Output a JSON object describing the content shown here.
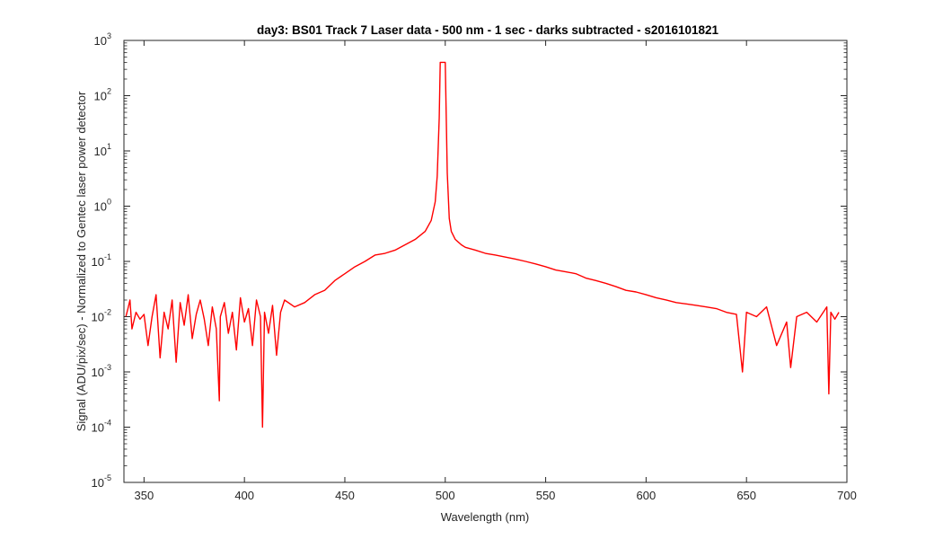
{
  "chart_data": {
    "type": "line",
    "title": "day3: BS01  Track 7 Laser data - 500 nm - 1 sec - darks subtracted - s2016101821",
    "xlabel": "Wavelength (nm)",
    "ylabel": "Signal (ADU/pix/sec) - Normalized to Gentec laser power detector",
    "xlim": [
      340,
      700
    ],
    "ylim": [
      1e-05,
      1000
    ],
    "yscale": "log",
    "grid": false,
    "legend": "none",
    "line_color": "#ff0000",
    "x_ticks": [
      {
        "value": 350,
        "label": "350"
      },
      {
        "value": 400,
        "label": "400"
      },
      {
        "value": 450,
        "label": "450"
      },
      {
        "value": 500,
        "label": "500"
      },
      {
        "value": 550,
        "label": "550"
      },
      {
        "value": 600,
        "label": "600"
      },
      {
        "value": 650,
        "label": "650"
      },
      {
        "value": 700,
        "label": "700"
      }
    ],
    "y_ticks": [
      {
        "value": 1e-05,
        "base": "10",
        "exp": "-5"
      },
      {
        "value": 0.0001,
        "base": "10",
        "exp": "-4"
      },
      {
        "value": 0.001,
        "base": "10",
        "exp": "-3"
      },
      {
        "value": 0.01,
        "base": "10",
        "exp": "-2"
      },
      {
        "value": 0.1,
        "base": "10",
        "exp": "-1"
      },
      {
        "value": 1,
        "base": "10",
        "exp": "0"
      },
      {
        "value": 10,
        "base": "10",
        "exp": "1"
      },
      {
        "value": 100,
        "base": "10",
        "exp": "2"
      },
      {
        "value": 1000,
        "base": "10",
        "exp": "3"
      }
    ],
    "series": [
      {
        "x": [
          341,
          342,
          343,
          344,
          346,
          348,
          350,
          352,
          354,
          356,
          358,
          360,
          362,
          364,
          366,
          368,
          370,
          372,
          374,
          376,
          378,
          380,
          382,
          384,
          386,
          387.5,
          388,
          390,
          392,
          394,
          396,
          398,
          400,
          402,
          404,
          406,
          408,
          409,
          410,
          412,
          414,
          416,
          418,
          420,
          425,
          430,
          435,
          440,
          445,
          450,
          455,
          460,
          465,
          470,
          475,
          480,
          485,
          490,
          493,
          495,
          496,
          497,
          497.5,
          498,
          500,
          500.5,
          501,
          502,
          503,
          505,
          508,
          510,
          515,
          520,
          525,
          530,
          535,
          540,
          545,
          550,
          555,
          560,
          565,
          570,
          575,
          580,
          585,
          590,
          595,
          600,
          605,
          610,
          615,
          620,
          625,
          630,
          635,
          640,
          645,
          648,
          650,
          655,
          660,
          665,
          670,
          672,
          675,
          680,
          685,
          690,
          691,
          692,
          694,
          696
        ],
        "y": [
          0.0101,
          0.014,
          0.02,
          0.006,
          0.012,
          0.009,
          0.011,
          0.003,
          0.01,
          0.025,
          0.0018,
          0.012,
          0.006,
          0.02,
          0.0015,
          0.018,
          0.007,
          0.025,
          0.004,
          0.011,
          0.02,
          0.009,
          0.003,
          0.015,
          0.006,
          0.0003,
          0.01,
          0.018,
          0.005,
          0.012,
          0.0025,
          0.022,
          0.008,
          0.014,
          0.003,
          0.02,
          0.01,
          0.0001,
          0.012,
          0.005,
          0.016,
          0.002,
          0.012,
          0.02,
          0.015,
          0.018,
          0.025,
          0.03,
          0.045,
          0.06,
          0.08,
          0.1,
          0.13,
          0.14,
          0.16,
          0.2,
          0.25,
          0.35,
          0.55,
          1.2,
          3.5,
          40,
          400,
          400,
          400,
          40,
          4,
          0.6,
          0.35,
          0.25,
          0.2,
          0.18,
          0.16,
          0.14,
          0.13,
          0.12,
          0.11,
          0.1,
          0.09,
          0.08,
          0.07,
          0.065,
          0.06,
          0.05,
          0.045,
          0.04,
          0.035,
          0.03,
          0.028,
          0.025,
          0.022,
          0.02,
          0.018,
          0.017,
          0.016,
          0.015,
          0.014,
          0.012,
          0.011,
          0.001,
          0.012,
          0.01,
          0.015,
          0.003,
          0.008,
          0.0012,
          0.01,
          0.012,
          0.008,
          0.015,
          0.0004,
          0.012,
          0.009,
          0.012
        ]
      }
    ]
  }
}
